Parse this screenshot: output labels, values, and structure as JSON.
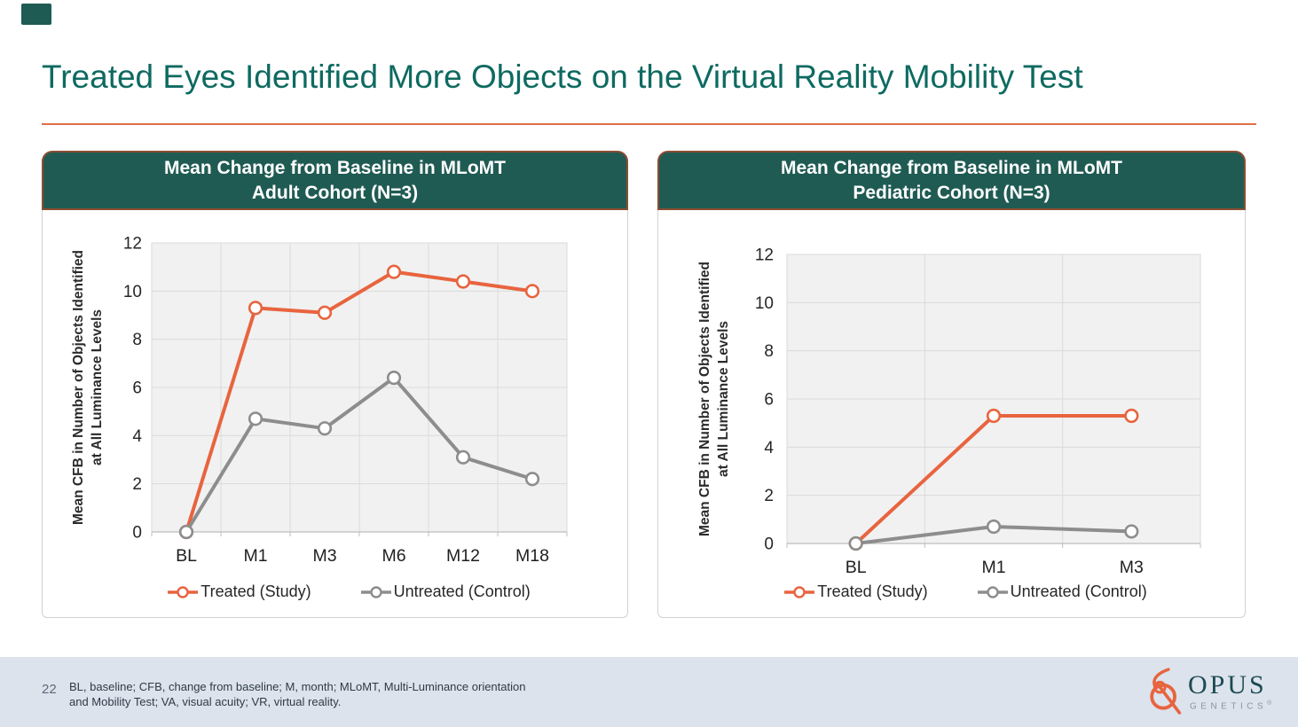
{
  "slide": {
    "title": "Treated Eyes Identified More Objects on the Virtual Reality Mobility Test",
    "page_number": "22",
    "footnote": [
      "BL, baseline; CFB, change from baseline; M, month; MLoMT, Multi-Luminance orientation",
      "and Mobility Test; VA, visual acuity; VR, virtual reality."
    ]
  },
  "logo": {
    "name": "OPUS",
    "subtext": "GENETICS",
    "registered": "®"
  },
  "colors": {
    "title_teal": "#0E6A61",
    "header_bg": "#1F5B53",
    "header_border": "#8B4D33",
    "divider_orange": "#DF6E4A",
    "treated_orange": "#E8643E",
    "untreated_gray": "#8D8D8D",
    "plot_bg": "#F1F1F1",
    "gridline": "#DADADA",
    "footer_bg": "#DCE3ED"
  },
  "chart_data": [
    {
      "type": "line",
      "title_lines": [
        "Mean Change from Baseline in MLoMT",
        "Adult Cohort (N=3)"
      ],
      "categories": [
        "BL",
        "M1",
        "M3",
        "M6",
        "M12",
        "M18"
      ],
      "series": [
        {
          "name": "Treated (Study)",
          "color": "#E8643E",
          "values": [
            0,
            9.3,
            9.1,
            10.8,
            10.4,
            10.0
          ]
        },
        {
          "name": "Untreated (Control)",
          "color": "#8D8D8D",
          "values": [
            0,
            4.7,
            4.3,
            6.4,
            3.1,
            2.2
          ]
        }
      ],
      "ylabel_lines": [
        "Mean CFB in Number of Objects Identified",
        "at All Luminance Levels"
      ],
      "ylim": [
        0,
        12
      ],
      "ytick_step": 2,
      "grid": true,
      "legend_position": "bottom"
    },
    {
      "type": "line",
      "title_lines": [
        "Mean Change from Baseline in MLoMT",
        "Pediatric Cohort (N=3)"
      ],
      "categories": [
        "BL",
        "M1",
        "M3"
      ],
      "series": [
        {
          "name": "Treated (Study)",
          "color": "#E8643E",
          "values": [
            0,
            5.3,
            5.3
          ]
        },
        {
          "name": "Untreated (Control)",
          "color": "#8D8D8D",
          "values": [
            0,
            0.7,
            0.5
          ]
        }
      ],
      "ylabel_lines": [
        "Mean CFB in Number of Objects Identified",
        "at All Luminance Levels"
      ],
      "ylim": [
        0,
        12
      ],
      "ytick_step": 2,
      "grid": true,
      "legend_position": "bottom"
    }
  ]
}
